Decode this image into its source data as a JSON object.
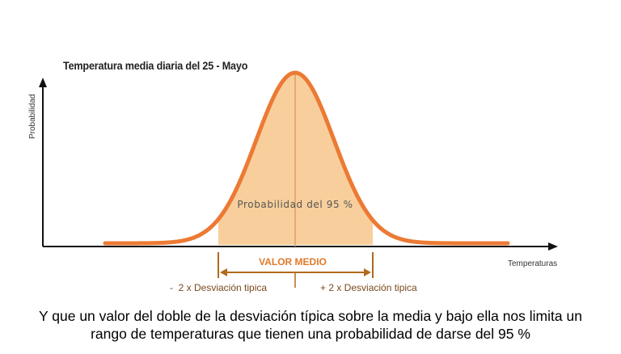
{
  "title": "Temperatura media diaria del 25 - Mayo",
  "axes": {
    "y_label": "Probabilidad",
    "x_label": "Temperaturas"
  },
  "region_label": "Probabilidad del 95 %",
  "mean_label": "VALOR MEDIO",
  "minus_label": "-  2 x Desviación tipica",
  "plus_label": "+ 2 x Desviación tipica",
  "caption": {
    "line1": "Y que un valor del doble de la desviación típica sobre la media y bajo ella nos limita un",
    "line2": "rango de temperaturas que tienen una probabilidad de darse del 95 %"
  },
  "colors": {
    "curve": "#ec7a34",
    "fill": "#f8cf9c",
    "brace": "#b06a1c",
    "axis": "#111111",
    "mean_text": "#e07a2a"
  }
}
